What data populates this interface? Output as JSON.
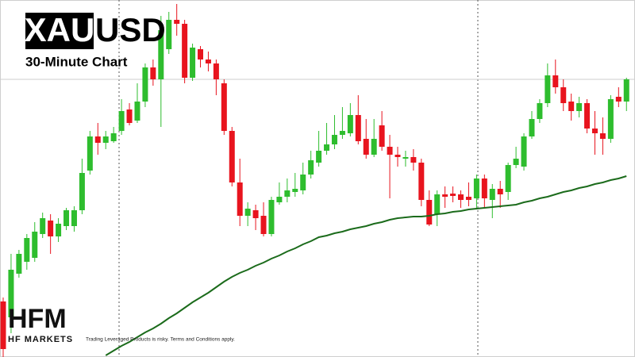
{
  "chart_data": {
    "type": "candlestick",
    "title_box": "XAU",
    "title": "USD",
    "subtitle": "30-Minute Chart",
    "ylim": [
      0,
      450
    ],
    "up_color": "#2ebd2e",
    "down_color": "#e8141e",
    "categories": [
      null,
      null,
      null,
      null,
      null,
      null,
      null,
      null,
      null,
      null,
      null,
      null,
      null,
      null,
      null,
      null,
      null,
      null,
      null,
      null,
      null,
      null,
      null,
      null,
      null,
      null,
      null,
      null,
      null,
      null,
      null,
      null,
      null,
      null,
      null,
      null,
      null,
      null,
      null,
      null,
      null,
      null,
      null,
      null,
      null,
      null,
      null,
      null,
      null,
      null,
      null,
      null,
      null,
      null,
      null,
      null,
      null,
      null,
      null,
      null,
      null,
      null,
      null,
      null,
      null,
      null,
      null,
      null,
      null,
      null,
      null,
      null,
      null,
      null,
      null,
      null,
      null,
      null,
      null,
      null
    ],
    "open": [
      70,
      50,
      105,
      120,
      125,
      155,
      172,
      152,
      165,
      165,
      185,
      235,
      278,
      270,
      272,
      285,
      312,
      298,
      322,
      365,
      350,
      388,
      425,
      420,
      352,
      388,
      375,
      370,
      345,
      285,
      220,
      178,
      185,
      178,
      155,
      195,
      202,
      208,
      210,
      230,
      245,
      260,
      268,
      280,
      282,
      305,
      275,
      255,
      292,
      265,
      255,
      250,
      252,
      245,
      198,
      180,
      205,
      206,
      205,
      202,
      200,
      225,
      198,
      212,
      208,
      242,
      240,
      278,
      300,
      320,
      355,
      340,
      322,
      310,
      320,
      288,
      282,
      275,
      328,
      322
    ],
    "high": [
      75,
      130,
      135,
      155,
      170,
      182,
      180,
      175,
      188,
      190,
      250,
      285,
      295,
      285,
      290,
      325,
      320,
      345,
      370,
      375,
      430,
      435,
      445,
      425,
      395,
      392,
      385,
      375,
      350,
      290,
      250,
      195,
      192,
      195,
      202,
      220,
      225,
      232,
      245,
      260,
      285,
      295,
      305,
      315,
      320,
      330,
      300,
      300,
      310,
      280,
      265,
      260,
      262,
      250,
      210,
      210,
      215,
      215,
      210,
      220,
      230,
      230,
      218,
      222,
      245,
      265,
      282,
      310,
      325,
      370,
      375,
      350,
      332,
      328,
      325,
      310,
      302,
      330,
      340,
      352
    ],
    "low": [
      0,
      30,
      100,
      110,
      120,
      150,
      130,
      145,
      160,
      158,
      180,
      230,
      255,
      262,
      270,
      280,
      292,
      295,
      315,
      342,
      290,
      382,
      405,
      345,
      348,
      365,
      360,
      330,
      280,
      215,
      165,
      165,
      160,
      152,
      152,
      192,
      195,
      202,
      205,
      225,
      240,
      255,
      262,
      275,
      278,
      268,
      250,
      252,
      260,
      200,
      240,
      240,
      235,
      190,
      165,
      165,
      188,
      195,
      188,
      190,
      188,
      188,
      175,
      188,
      198,
      238,
      235,
      275,
      295,
      315,
      332,
      310,
      298,
      302,
      282,
      255,
      255,
      270,
      315,
      310
    ],
    "close": [
      10,
      110,
      130,
      150,
      158,
      175,
      152,
      168,
      185,
      185,
      232,
      278,
      270,
      278,
      282,
      310,
      295,
      322,
      365,
      350,
      412,
      425,
      420,
      352,
      390,
      375,
      370,
      350,
      285,
      220,
      178,
      187,
      175,
      155,
      198,
      202,
      210,
      212,
      230,
      248,
      260,
      268,
      280,
      285,
      305,
      272,
      255,
      275,
      265,
      255,
      252,
      252,
      245,
      198,
      167,
      205,
      202,
      203,
      198,
      198,
      225,
      200,
      212,
      205,
      242,
      250,
      278,
      300,
      320,
      355,
      340,
      320,
      310,
      320,
      288,
      282,
      275,
      325,
      322,
      350
    ],
    "moving_average": {
      "color": "#1b6b1b",
      "values": [
        null,
        null,
        null,
        null,
        null,
        null,
        null,
        null,
        null,
        null,
        null,
        null,
        null,
        2,
        8,
        14,
        19,
        25,
        31,
        36,
        42,
        49,
        55,
        62,
        69,
        75,
        81,
        88,
        95,
        101,
        106,
        110,
        115,
        119,
        124,
        128,
        133,
        137,
        142,
        146,
        151,
        153,
        156,
        158,
        161,
        163,
        165,
        168,
        170,
        173,
        175,
        176,
        177,
        177,
        178,
        180,
        181,
        183,
        184,
        186,
        187,
        188,
        189,
        190,
        191,
        192,
        195,
        197,
        200,
        202,
        205,
        208,
        210,
        213,
        215,
        218,
        220,
        223,
        225,
        228
      ]
    },
    "price_line": {
      "value": 350,
      "color": "#cccccc"
    }
  },
  "brand": {
    "logo": "HFM",
    "name": "HF MARKETS",
    "disclaimer": "Trading Leveraged Products is risky. Terms and Conditions apply."
  }
}
